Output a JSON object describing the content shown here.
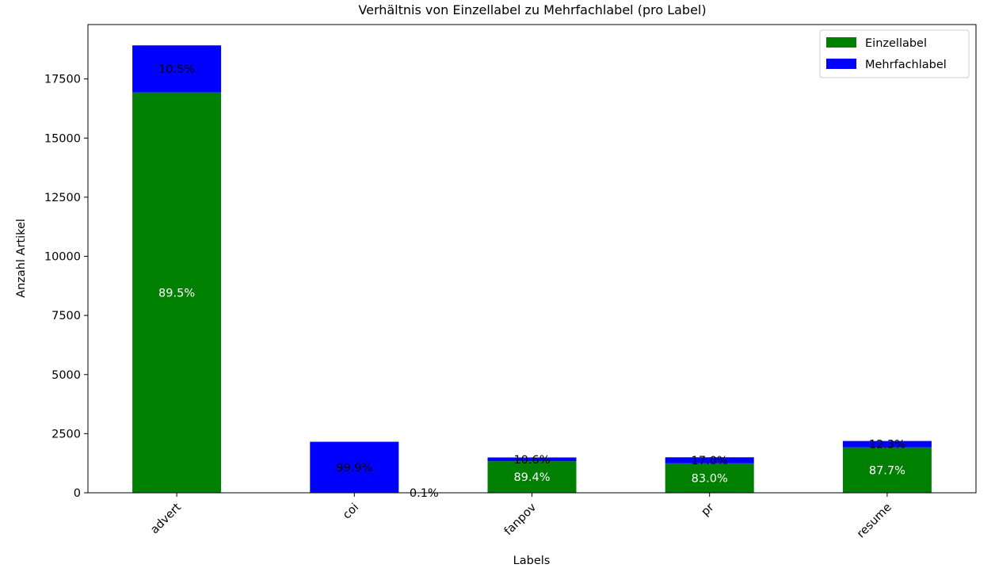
{
  "chart_data": {
    "type": "bar",
    "stacked": true,
    "title": "Verhältnis von Einzellabel zu Mehrfachlabel (pro Label)",
    "xlabel": "Labels",
    "ylabel": "Anzahl Artikel",
    "categories": [
      "advert",
      "coi",
      "fanpov",
      "pr",
      "resume"
    ],
    "ylim": [
      0,
      19800
    ],
    "yticks": [
      0,
      2500,
      5000,
      7500,
      10000,
      12500,
      15000,
      17500
    ],
    "ytick_labels": [
      "0",
      "2500",
      "5000",
      "7500",
      "10000",
      "12500",
      "15000",
      "17500"
    ],
    "series": [
      {
        "name": "Einzellabel",
        "color": "#008000",
        "values": [
          16930,
          2,
          1335,
          1245,
          1920
        ],
        "labels": [
          "89.5%",
          "0.1%",
          "89.4%",
          "83.0%",
          "87.7%"
        ]
      },
      {
        "name": "Mehrfachlabel",
        "color": "#0000ff",
        "values": [
          1990,
          2155,
          158,
          255,
          270
        ],
        "labels": [
          "10.5%",
          "99.9%",
          "10.6%",
          "17.0%",
          "12.3%"
        ]
      }
    ],
    "legend_position": "top-right",
    "grid": false
  }
}
